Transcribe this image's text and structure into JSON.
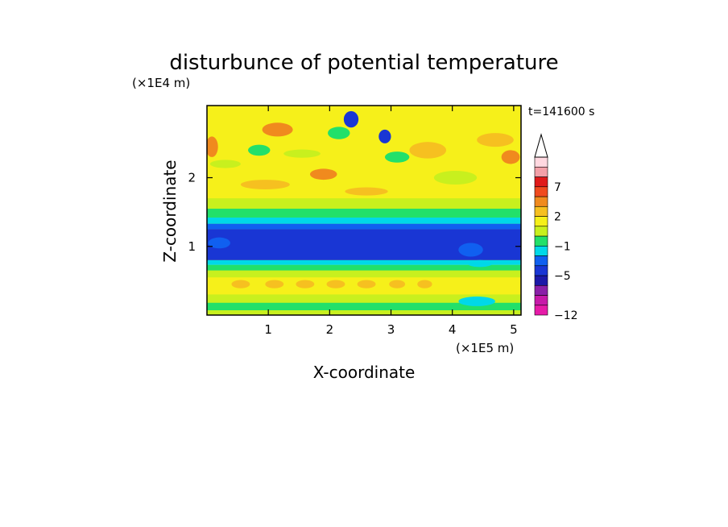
{
  "chart_data": {
    "type": "heatmap",
    "title": "disturbunce of potential temperature",
    "timestamp": "t=141600 s",
    "xlabel": "X-coordinate",
    "ylabel": "Z-coordinate",
    "x_unit": "(×1E5 m)",
    "y_unit": "(×1E4 m)",
    "xlim": [
      0,
      5.12
    ],
    "ylim": [
      0,
      3.05
    ],
    "x_ticks": [
      1,
      2,
      3,
      4,
      5
    ],
    "y_ticks": [
      1,
      2
    ],
    "x_tick_labels": [
      "1",
      "2",
      "3",
      "4",
      "5"
    ],
    "y_tick_labels": [
      "1",
      "2"
    ],
    "colorbar": {
      "levels_low_to_high": [
        -12,
        -11,
        -9,
        -7,
        -5,
        -4,
        -3,
        -1,
        0,
        1,
        2,
        3,
        5,
        7,
        9,
        11
      ],
      "labels": [
        "7",
        "2",
        "−1",
        "−5",
        "−12"
      ],
      "label_values": [
        7,
        2,
        -1,
        -5,
        -12
      ],
      "colors_low_to_high": [
        "#e61ba8",
        "#c71aa9",
        "#8a20a8",
        "#1c19a8",
        "#1936d4",
        "#1060f0",
        "#00d8e8",
        "#22e06a",
        "#c8f01e",
        "#f6f01a",
        "#f6c020",
        "#f08a1e",
        "#f04a1e",
        "#e01a1a",
        "#f3a0a8",
        "#ffd8e0"
      ],
      "extend_top": true
    },
    "bands": [
      {
        "z_from": 0.0,
        "z_to": 0.07,
        "value": 0.5
      },
      {
        "z_from": 0.07,
        "z_to": 0.18,
        "value": -0.5
      },
      {
        "z_from": 0.18,
        "z_to": 0.3,
        "value": 0.5
      },
      {
        "z_from": 0.3,
        "z_to": 0.55,
        "value": 1.5
      },
      {
        "z_from": 0.55,
        "z_to": 0.65,
        "value": 0.5
      },
      {
        "z_from": 0.65,
        "z_to": 0.73,
        "value": -0.5
      },
      {
        "z_from": 0.73,
        "z_to": 0.8,
        "value": -2
      },
      {
        "z_from": 0.8,
        "z_to": 1.25,
        "value": -4.5
      },
      {
        "z_from": 1.25,
        "z_to": 1.33,
        "value": -3.5
      },
      {
        "z_from": 1.33,
        "z_to": 1.42,
        "value": -2
      },
      {
        "z_from": 1.42,
        "z_to": 1.55,
        "value": -0.5
      },
      {
        "z_from": 1.55,
        "z_to": 1.7,
        "value": 0.5
      },
      {
        "z_from": 1.7,
        "z_to": 3.05,
        "value": 1.5
      }
    ],
    "features": [
      {
        "x": 2.35,
        "z": 2.85,
        "rx": 0.12,
        "rz": 0.12,
        "value": -4.5
      },
      {
        "x": 2.9,
        "z": 2.6,
        "rx": 0.1,
        "rz": 0.1,
        "value": -4.5
      },
      {
        "x": 2.15,
        "z": 2.65,
        "rx": 0.18,
        "rz": 0.09,
        "value": -0.5
      },
      {
        "x": 0.85,
        "z": 2.4,
        "rx": 0.18,
        "rz": 0.08,
        "value": -0.5
      },
      {
        "x": 3.1,
        "z": 2.3,
        "rx": 0.2,
        "rz": 0.08,
        "value": -0.5
      },
      {
        "x": 0.08,
        "z": 2.45,
        "rx": 0.1,
        "rz": 0.15,
        "value": 4
      },
      {
        "x": 1.15,
        "z": 2.7,
        "rx": 0.25,
        "rz": 0.1,
        "value": 4
      },
      {
        "x": 1.9,
        "z": 2.05,
        "rx": 0.22,
        "rz": 0.08,
        "value": 4
      },
      {
        "x": 4.7,
        "z": 2.55,
        "rx": 0.3,
        "rz": 0.1,
        "value": 2.5
      },
      {
        "x": 3.6,
        "z": 2.4,
        "rx": 0.3,
        "rz": 0.12,
        "value": 2.5
      },
      {
        "x": 4.95,
        "z": 2.3,
        "rx": 0.15,
        "rz": 0.1,
        "value": 4
      },
      {
        "x": 0.3,
        "z": 2.2,
        "rx": 0.25,
        "rz": 0.06,
        "value": 0.5
      },
      {
        "x": 1.55,
        "z": 2.35,
        "rx": 0.3,
        "rz": 0.06,
        "value": 0.5
      },
      {
        "x": 4.05,
        "z": 2.0,
        "rx": 0.35,
        "rz": 0.1,
        "value": 0.5
      },
      {
        "x": 0.95,
        "z": 1.9,
        "rx": 0.4,
        "rz": 0.07,
        "value": 2.5
      },
      {
        "x": 2.6,
        "z": 1.8,
        "rx": 0.35,
        "rz": 0.06,
        "value": 2.5
      },
      {
        "x": 0.55,
        "z": 0.45,
        "rx": 0.15,
        "rz": 0.06,
        "value": 2.5
      },
      {
        "x": 1.1,
        "z": 0.45,
        "rx": 0.15,
        "rz": 0.06,
        "value": 2.5
      },
      {
        "x": 1.6,
        "z": 0.45,
        "rx": 0.15,
        "rz": 0.06,
        "value": 2.5
      },
      {
        "x": 2.1,
        "z": 0.45,
        "rx": 0.15,
        "rz": 0.06,
        "value": 2.5
      },
      {
        "x": 2.6,
        "z": 0.45,
        "rx": 0.15,
        "rz": 0.06,
        "value": 2.5
      },
      {
        "x": 3.1,
        "z": 0.45,
        "rx": 0.13,
        "rz": 0.06,
        "value": 2.5
      },
      {
        "x": 3.55,
        "z": 0.45,
        "rx": 0.12,
        "rz": 0.06,
        "value": 2.5
      },
      {
        "x": 4.4,
        "z": 0.2,
        "rx": 0.3,
        "rz": 0.07,
        "value": -2
      },
      {
        "x": 4.45,
        "z": 0.75,
        "rx": 0.2,
        "rz": 0.05,
        "value": -2
      },
      {
        "x": 4.3,
        "z": 0.95,
        "rx": 0.2,
        "rz": 0.1,
        "value": -3.5
      },
      {
        "x": 0.2,
        "z": 1.05,
        "rx": 0.18,
        "rz": 0.08,
        "value": -3.5
      }
    ]
  }
}
